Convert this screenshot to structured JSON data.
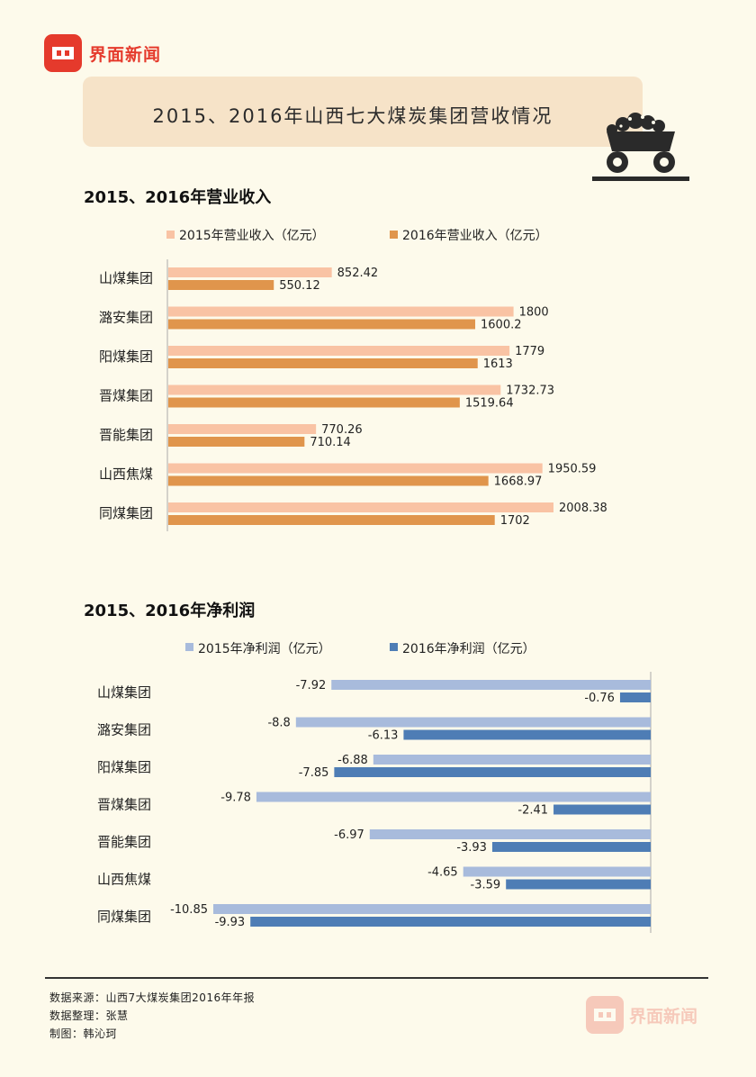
{
  "brand": {
    "name": "界面新闻",
    "color": "#e53a2c"
  },
  "title": "2015、2016年山西七大煤炭集团营收情况",
  "colors": {
    "rev2015": "#f9c3a4",
    "rev2016": "#e0954c",
    "np2015": "#a8bbdc",
    "np2016": "#4e7db5"
  },
  "revenue_section": {
    "title": "2015、2016年营业收入"
  },
  "profit_section": {
    "title": "2015、2016年净利润"
  },
  "chart_data": [
    {
      "type": "bar",
      "orientation": "horizontal",
      "title": "2015、2016年营业收入",
      "categories": [
        "山煤集团",
        "潞安集团",
        "阳煤集团",
        "晋煤集团",
        "晋能集团",
        "山西焦煤",
        "同煤集团"
      ],
      "series": [
        {
          "name": "2015年营业收入（亿元）",
          "values": [
            852.42,
            1800,
            1779,
            1732.73,
            770.26,
            1950.59,
            2008.38
          ],
          "labels": [
            "852.42",
            "1800",
            "1779",
            "1732.73",
            "770.26",
            "1950.59",
            "2008.38"
          ]
        },
        {
          "name": "2016年营业收入（亿元）",
          "values": [
            550.12,
            1600.2,
            1613,
            1519.64,
            710.14,
            1668.97,
            1702
          ],
          "labels": [
            "550.12",
            "1600.2",
            "1613",
            "1519.64",
            "710.14",
            "1668.97",
            "1702"
          ]
        }
      ],
      "xlim": [
        0,
        2250
      ]
    },
    {
      "type": "bar",
      "orientation": "horizontal",
      "title": "2015、2016年净利润",
      "categories": [
        "山煤集团",
        "潞安集团",
        "阳煤集团",
        "晋煤集团",
        "晋能集团",
        "山西焦煤",
        "同煤集团"
      ],
      "series": [
        {
          "name": "2015年净利润（亿元）",
          "values": [
            -7.92,
            -8.8,
            -6.88,
            -9.78,
            -6.97,
            -4.65,
            -10.85
          ],
          "labels": [
            "-7.92",
            "-8.8",
            "-6.88",
            "-9.78",
            "-6.97",
            "-4.65",
            "-10.85"
          ]
        },
        {
          "name": "2016年净利润（亿元）",
          "values": [
            -0.76,
            -6.13,
            -7.85,
            -2.41,
            -3.93,
            -3.59,
            -9.93
          ],
          "labels": [
            "-0.76",
            "-6.13",
            "-7.85",
            "-2.41",
            "-3.93",
            "-3.59",
            "-9.93"
          ]
        }
      ],
      "xlim": [
        -11,
        0
      ]
    }
  ],
  "footer": {
    "source": "数据来源：山西7大煤炭集团2016年年报",
    "compiler": "数据整理：张慧",
    "designer": "制图：韩沁珂"
  }
}
